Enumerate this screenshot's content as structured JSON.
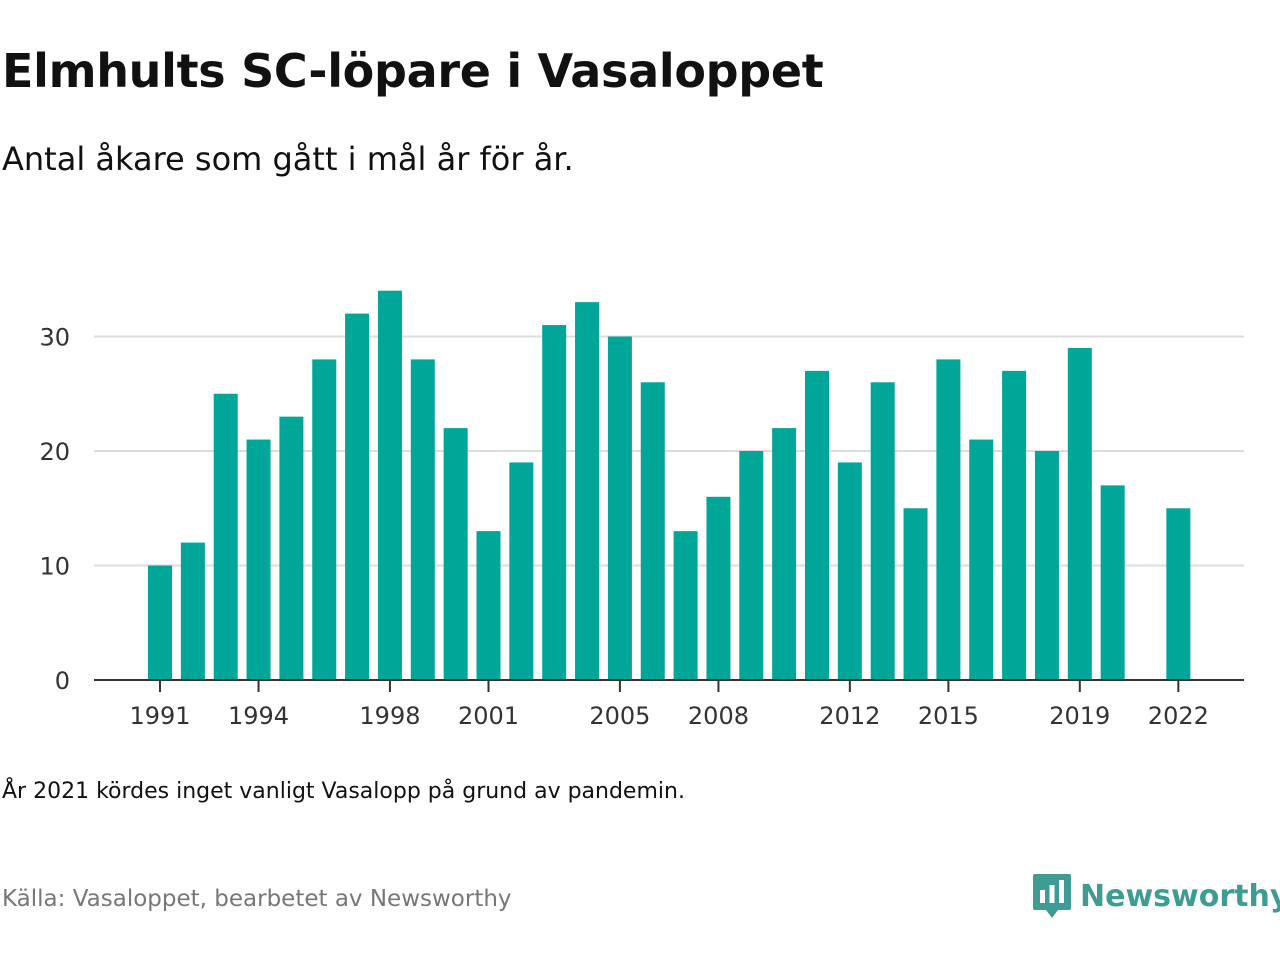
{
  "header": {
    "title": "Elmhults SC-löpare i Vasaloppet",
    "subtitle": "Antal åkare som gått i mål år för år."
  },
  "footer": {
    "note": "År 2021 kördes inget vanligt Vasalopp på grund av pandemin.",
    "source": "Källa: Vasaloppet, bearbetet av Newsworthy",
    "brand": "Newsworthy"
  },
  "colors": {
    "bar": "#00a698",
    "grid": "#dddddd",
    "axis": "#333333",
    "brand": "#3e9c93"
  },
  "chart_data": {
    "type": "bar",
    "title": "Elmhults SC-löpare i Vasaloppet",
    "subtitle": "Antal åkare som gått i mål år för år.",
    "categories": [
      1991,
      1992,
      1993,
      1994,
      1995,
      1996,
      1997,
      1998,
      1999,
      2000,
      2001,
      2002,
      2003,
      2004,
      2005,
      2006,
      2007,
      2008,
      2009,
      2010,
      2011,
      2012,
      2013,
      2014,
      2015,
      2016,
      2017,
      2018,
      2019,
      2020,
      2021,
      2022
    ],
    "values": [
      10,
      12,
      25,
      21,
      23,
      28,
      32,
      34,
      28,
      22,
      13,
      19,
      31,
      33,
      30,
      26,
      13,
      16,
      20,
      22,
      27,
      19,
      26,
      15,
      28,
      21,
      27,
      20,
      29,
      17,
      null,
      15
    ],
    "x_tick_labels": [
      "1991",
      "1994",
      "1998",
      "2001",
      "2005",
      "2008",
      "2012",
      "2015",
      "2019",
      "2022"
    ],
    "y_ticks": [
      0,
      10,
      20,
      30
    ],
    "ylim": [
      0,
      36
    ],
    "grid": true,
    "xlabel": "",
    "ylabel": ""
  }
}
